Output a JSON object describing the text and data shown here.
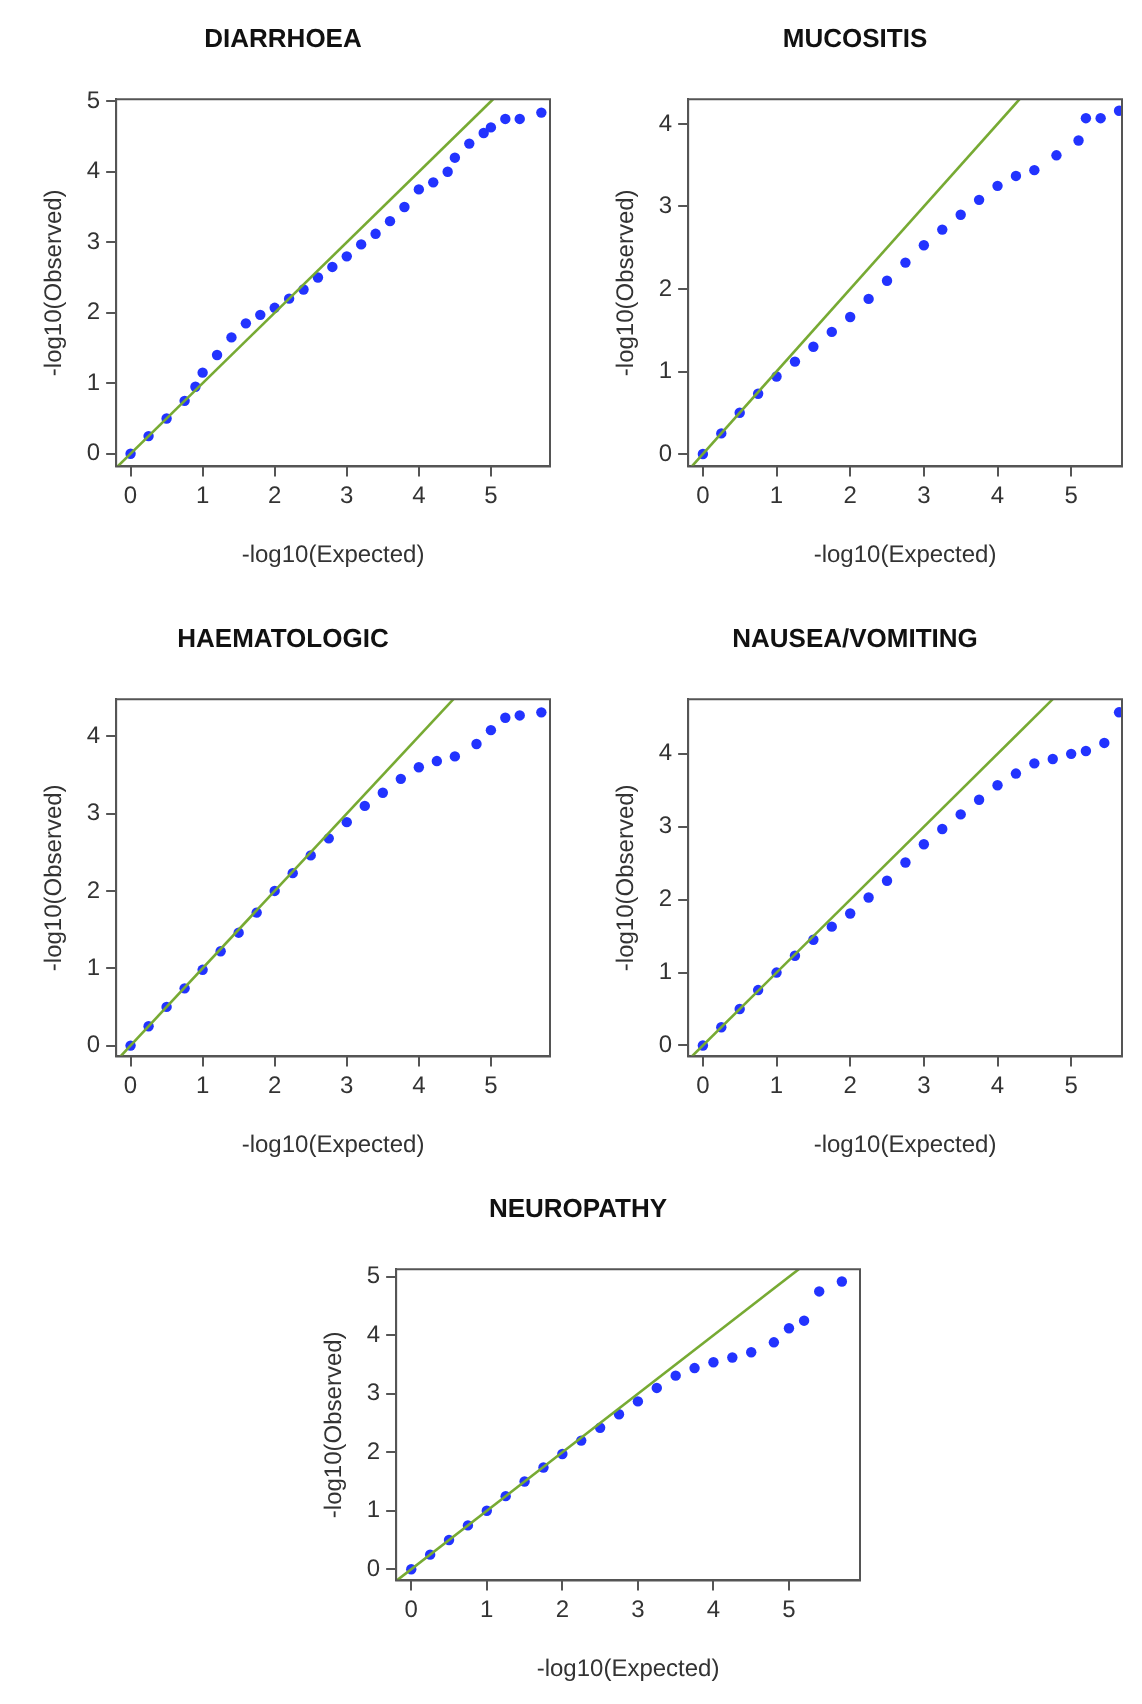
{
  "chart_data": [
    {
      "type": "scatter",
      "title": "DIARRHOEA",
      "xlabel": "-log10(Expected)",
      "ylabel": "-log10(Observed)",
      "xlim": [
        -0.2,
        5.82
      ],
      "ylim": [
        -0.18,
        5.03
      ],
      "xticks": [
        0,
        1,
        2,
        3,
        4,
        5
      ],
      "yticks": [
        0,
        1,
        2,
        3,
        4,
        5
      ],
      "series": [
        {
          "color": "#2233ff",
          "marker": "circle",
          "x": [
            0,
            0.25,
            0.5,
            0.75,
            0.9,
            1.0,
            1.2,
            1.4,
            1.6,
            1.8,
            2.0,
            2.2,
            2.4,
            2.6,
            2.8,
            3.0,
            3.2,
            3.4,
            3.6,
            3.8,
            4.0,
            4.2,
            4.4,
            4.5,
            4.7,
            4.9,
            5.0,
            5.2,
            5.4,
            5.7
          ],
          "values": [
            0,
            0.25,
            0.5,
            0.75,
            0.95,
            1.15,
            1.4,
            1.65,
            1.85,
            1.97,
            2.07,
            2.2,
            2.33,
            2.5,
            2.65,
            2.8,
            2.97,
            3.12,
            3.3,
            3.5,
            3.75,
            3.85,
            4.0,
            4.2,
            4.4,
            4.55,
            4.63,
            4.75,
            4.75,
            4.84
          ]
        },
        {
          "type": "line",
          "marker": "none",
          "color": "#77aa33",
          "x": [
            -0.18,
            5.03
          ],
          "values": [
            -0.18,
            5.03
          ]
        }
      ]
    },
    {
      "type": "scatter",
      "title": "MUCOSITIS",
      "xlabel": "-log10(Expected)",
      "ylabel": "-log10(Observed)",
      "xlim": [
        -0.2,
        5.69
      ],
      "ylim": [
        -0.15,
        4.3
      ],
      "xticks": [
        0,
        1,
        2,
        3,
        4,
        5
      ],
      "yticks": [
        0,
        1,
        2,
        3,
        4
      ],
      "series": [
        {
          "color": "#2233ff",
          "marker": "circle",
          "x": [
            0,
            0.25,
            0.5,
            0.75,
            1.0,
            1.25,
            1.5,
            1.75,
            2.0,
            2.25,
            2.5,
            2.75,
            3.0,
            3.25,
            3.5,
            3.75,
            4.0,
            4.25,
            4.5,
            4.8,
            5.1,
            5.2,
            5.4,
            5.65
          ],
          "values": [
            0,
            0.25,
            0.5,
            0.73,
            0.94,
            1.12,
            1.3,
            1.48,
            1.66,
            1.88,
            2.1,
            2.32,
            2.53,
            2.72,
            2.9,
            3.08,
            3.25,
            3.37,
            3.44,
            3.62,
            3.8,
            4.07,
            4.07,
            4.16
          ]
        },
        {
          "type": "line",
          "marker": "none",
          "color": "#77aa33",
          "x": [
            -0.15,
            4.3
          ],
          "values": [
            -0.15,
            4.3
          ]
        }
      ]
    },
    {
      "type": "scatter",
      "title": "HAEMATOLOGIC",
      "xlabel": "-log10(Expected)",
      "ylabel": "-log10(Observed)",
      "xlim": [
        -0.2,
        5.82
      ],
      "ylim": [
        -0.14,
        4.48
      ],
      "xticks": [
        0,
        1,
        2,
        3,
        4,
        5
      ],
      "yticks": [
        0,
        1,
        2,
        3,
        4
      ],
      "series": [
        {
          "color": "#2233ff",
          "marker": "circle",
          "x": [
            0,
            0.25,
            0.5,
            0.75,
            1.0,
            1.25,
            1.5,
            1.75,
            2.0,
            2.25,
            2.5,
            2.75,
            3.0,
            3.25,
            3.5,
            3.75,
            4.0,
            4.25,
            4.5,
            4.8,
            5.0,
            5.2,
            5.4,
            5.7
          ],
          "values": [
            0,
            0.25,
            0.5,
            0.74,
            0.98,
            1.22,
            1.46,
            1.72,
            2.0,
            2.23,
            2.46,
            2.68,
            2.89,
            3.1,
            3.27,
            3.45,
            3.6,
            3.68,
            3.74,
            3.9,
            4.08,
            4.24,
            4.27,
            4.31
          ]
        },
        {
          "type": "line",
          "marker": "none",
          "color": "#77aa33",
          "x": [
            -0.14,
            4.48
          ],
          "values": [
            -0.14,
            4.48
          ]
        }
      ]
    },
    {
      "type": "scatter",
      "title": "NAUSEA/VOMITING",
      "xlabel": "-log10(Expected)",
      "ylabel": "-log10(Observed)",
      "xlim": [
        -0.2,
        5.69
      ],
      "ylim": [
        -0.15,
        4.75
      ],
      "xticks": [
        0,
        1,
        2,
        3,
        4,
        5
      ],
      "yticks": [
        0,
        1,
        2,
        3,
        4
      ],
      "series": [
        {
          "color": "#2233ff",
          "marker": "circle",
          "x": [
            0,
            0.25,
            0.5,
            0.75,
            1.0,
            1.25,
            1.5,
            1.75,
            2.0,
            2.25,
            2.5,
            2.75,
            3.0,
            3.25,
            3.5,
            3.75,
            4.0,
            4.25,
            4.5,
            4.75,
            5.0,
            5.2,
            5.45,
            5.65
          ],
          "values": [
            0,
            0.25,
            0.5,
            0.76,
            1.0,
            1.23,
            1.45,
            1.63,
            1.81,
            2.03,
            2.26,
            2.51,
            2.76,
            2.97,
            3.17,
            3.37,
            3.57,
            3.73,
            3.87,
            3.93,
            4.0,
            4.04,
            4.15,
            4.57
          ]
        },
        {
          "type": "line",
          "marker": "none",
          "color": "#77aa33",
          "x": [
            -0.15,
            4.75
          ],
          "values": [
            -0.15,
            4.75
          ]
        }
      ]
    },
    {
      "type": "scatter",
      "title": "NEUROPATHY",
      "xlabel": "-log10(Expected)",
      "ylabel": "-log10(Observed)",
      "xlim": [
        -0.2,
        5.94
      ],
      "ylim": [
        -0.19,
        5.13
      ],
      "xticks": [
        0,
        1,
        2,
        3,
        4,
        5
      ],
      "yticks": [
        0,
        1,
        2,
        3,
        4,
        5
      ],
      "series": [
        {
          "color": "#2233ff",
          "marker": "circle",
          "x": [
            0,
            0.25,
            0.5,
            0.75,
            1.0,
            1.25,
            1.5,
            1.75,
            2.0,
            2.25,
            2.5,
            2.75,
            3.0,
            3.25,
            3.5,
            3.75,
            4.0,
            4.25,
            4.5,
            4.8,
            5.0,
            5.2,
            5.4,
            5.7
          ],
          "values": [
            0,
            0.25,
            0.5,
            0.75,
            1.0,
            1.25,
            1.5,
            1.74,
            1.97,
            2.2,
            2.42,
            2.65,
            2.87,
            3.1,
            3.31,
            3.44,
            3.54,
            3.62,
            3.71,
            3.88,
            4.12,
            4.25,
            4.75,
            4.92
          ]
        },
        {
          "type": "line",
          "marker": "none",
          "color": "#77aa33",
          "x": [
            -0.19,
            5.13
          ],
          "values": [
            -0.19,
            5.13
          ]
        }
      ]
    }
  ]
}
